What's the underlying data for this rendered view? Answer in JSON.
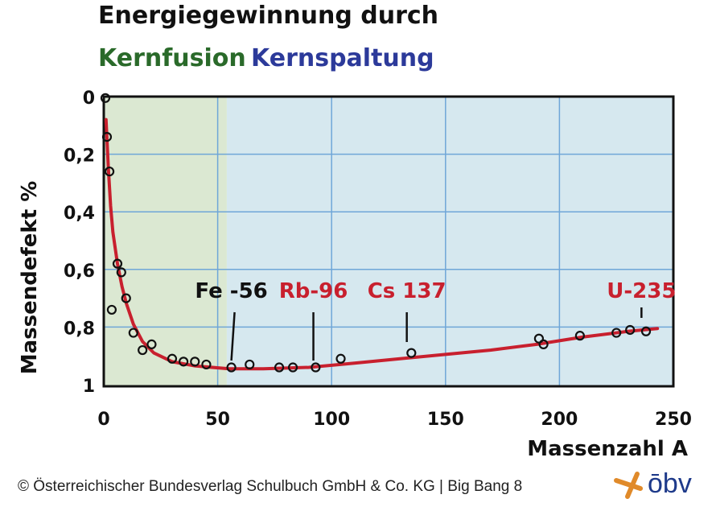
{
  "chart_data": {
    "type": "scatter",
    "title": "Energiegewinnung durch",
    "subtitle_fusion": "Kernfusion",
    "subtitle_fission": "Kernspaltung",
    "xlabel": "Massenzahl A",
    "ylabel": "Massendefekt %",
    "xlim": [
      0,
      250
    ],
    "ylim": [
      0,
      1
    ],
    "y_inverted": true,
    "grid": true,
    "x_ticks": [
      "0",
      "50",
      "100",
      "150",
      "200",
      "250"
    ],
    "x_tick_values": [
      0,
      50,
      100,
      150,
      200,
      250
    ],
    "y_ticks": [
      "0",
      "0,2",
      "0,4",
      "0,6",
      "0,8",
      "1"
    ],
    "y_tick_values": [
      0,
      0.2,
      0.4,
      0.6,
      0.8,
      1
    ],
    "regions": [
      {
        "name": "Kernfusion",
        "from": 0,
        "to": 54,
        "color": "#dbe8d2"
      },
      {
        "name": "Kernspaltung",
        "from": 54,
        "to": 250,
        "color": "#d6e8ef"
      }
    ],
    "points": [
      [
        0.7,
        0.005
      ],
      [
        1.4,
        0.14
      ],
      [
        2.5,
        0.26
      ],
      [
        3.5,
        0.74
      ],
      [
        6,
        0.58
      ],
      [
        7.7,
        0.61
      ],
      [
        9.8,
        0.7
      ],
      [
        13,
        0.82
      ],
      [
        17,
        0.88
      ],
      [
        21,
        0.86
      ],
      [
        30,
        0.91
      ],
      [
        35,
        0.92
      ],
      [
        40,
        0.92
      ],
      [
        45,
        0.93
      ],
      [
        56,
        0.94
      ],
      [
        64,
        0.93
      ],
      [
        77,
        0.94
      ],
      [
        83,
        0.94
      ],
      [
        93,
        0.94
      ],
      [
        104,
        0.91
      ],
      [
        135,
        0.89
      ],
      [
        191,
        0.84
      ],
      [
        193,
        0.86
      ],
      [
        209,
        0.83
      ],
      [
        225,
        0.82
      ],
      [
        231,
        0.81
      ],
      [
        238,
        0.815
      ]
    ],
    "curve": [
      [
        1,
        0.08
      ],
      [
        2,
        0.25
      ],
      [
        3,
        0.38
      ],
      [
        4,
        0.47
      ],
      [
        6,
        0.58
      ],
      [
        8,
        0.66
      ],
      [
        10,
        0.72
      ],
      [
        13,
        0.79
      ],
      [
        17,
        0.85
      ],
      [
        22,
        0.89
      ],
      [
        30,
        0.92
      ],
      [
        40,
        0.935
      ],
      [
        55,
        0.945
      ],
      [
        70,
        0.945
      ],
      [
        90,
        0.94
      ],
      [
        110,
        0.925
      ],
      [
        130,
        0.91
      ],
      [
        150,
        0.895
      ],
      [
        170,
        0.88
      ],
      [
        190,
        0.86
      ],
      [
        210,
        0.835
      ],
      [
        230,
        0.815
      ],
      [
        243,
        0.805
      ]
    ],
    "annotations": [
      {
        "text": "Fe -56",
        "x": 56,
        "color": "#111111"
      },
      {
        "text": "Rb-96",
        "x": 92,
        "color": "#c8202e"
      },
      {
        "text": "Cs 137",
        "x": 133,
        "color": "#c8202e"
      },
      {
        "text": "U-235",
        "x": 236,
        "color": "#c8202e"
      }
    ],
    "curve_color": "#c8202e"
  },
  "footer": "© Österreichischer Bundesverlag Schulbuch GmbH & Co. KG |  Big Bang 8",
  "logo": {
    "text": "ōbv",
    "accent": "#e08a2a",
    "color": "#1e3a8a"
  }
}
